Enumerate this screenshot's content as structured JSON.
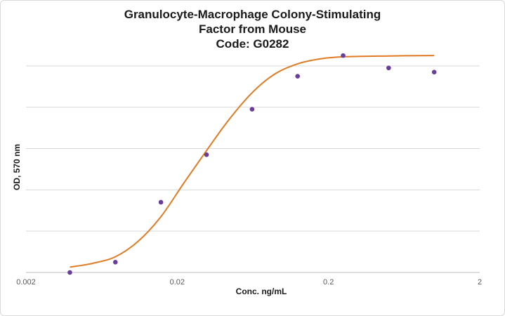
{
  "chart_data": {
    "type": "scatter",
    "title_lines": [
      "Granulocyte-Macrophage Colony-Stimulating",
      "Factor from Mouse",
      "Code: G0282"
    ],
    "xlabel": "Conc. ng/mL",
    "ylabel": "OD, 570 nm",
    "x_scale": "log",
    "xlim": [
      0.002,
      2
    ],
    "x_ticks": [
      0.002,
      0.02,
      0.2,
      2
    ],
    "x_tick_labels": [
      "0.002",
      "0.02",
      "0.2",
      "2"
    ],
    "ylim": [
      0,
      5
    ],
    "y_gridlines": [
      0,
      1,
      2,
      3,
      4,
      5
    ],
    "y_tick_labels_shown": false,
    "grid": "horizontal",
    "colors": {
      "points": "#6a3d9a",
      "curve": "#e07b24",
      "grid": "#d9d9d9",
      "axis": "#bfbfbf"
    },
    "points": [
      {
        "x": 0.0039,
        "y": 0.0
      },
      {
        "x": 0.0078,
        "y": 0.25
      },
      {
        "x": 0.0156,
        "y": 1.7
      },
      {
        "x": 0.03125,
        "y": 2.85
      },
      {
        "x": 0.0625,
        "y": 3.95
      },
      {
        "x": 0.125,
        "y": 4.75
      },
      {
        "x": 0.25,
        "y": 5.25
      },
      {
        "x": 0.5,
        "y": 4.95
      },
      {
        "x": 1.0,
        "y": 4.85
      }
    ],
    "fit_curve": [
      {
        "x": 0.0039,
        "y": 0.13
      },
      {
        "x": 0.0055,
        "y": 0.22
      },
      {
        "x": 0.0078,
        "y": 0.38
      },
      {
        "x": 0.011,
        "y": 0.75
      },
      {
        "x": 0.0156,
        "y": 1.35
      },
      {
        "x": 0.022,
        "y": 2.15
      },
      {
        "x": 0.03125,
        "y": 2.95
      },
      {
        "x": 0.044,
        "y": 3.7
      },
      {
        "x": 0.0625,
        "y": 4.35
      },
      {
        "x": 0.088,
        "y": 4.8
      },
      {
        "x": 0.125,
        "y": 5.05
      },
      {
        "x": 0.177,
        "y": 5.17
      },
      {
        "x": 0.25,
        "y": 5.22
      },
      {
        "x": 0.5,
        "y": 5.24
      },
      {
        "x": 1.0,
        "y": 5.25
      }
    ]
  }
}
